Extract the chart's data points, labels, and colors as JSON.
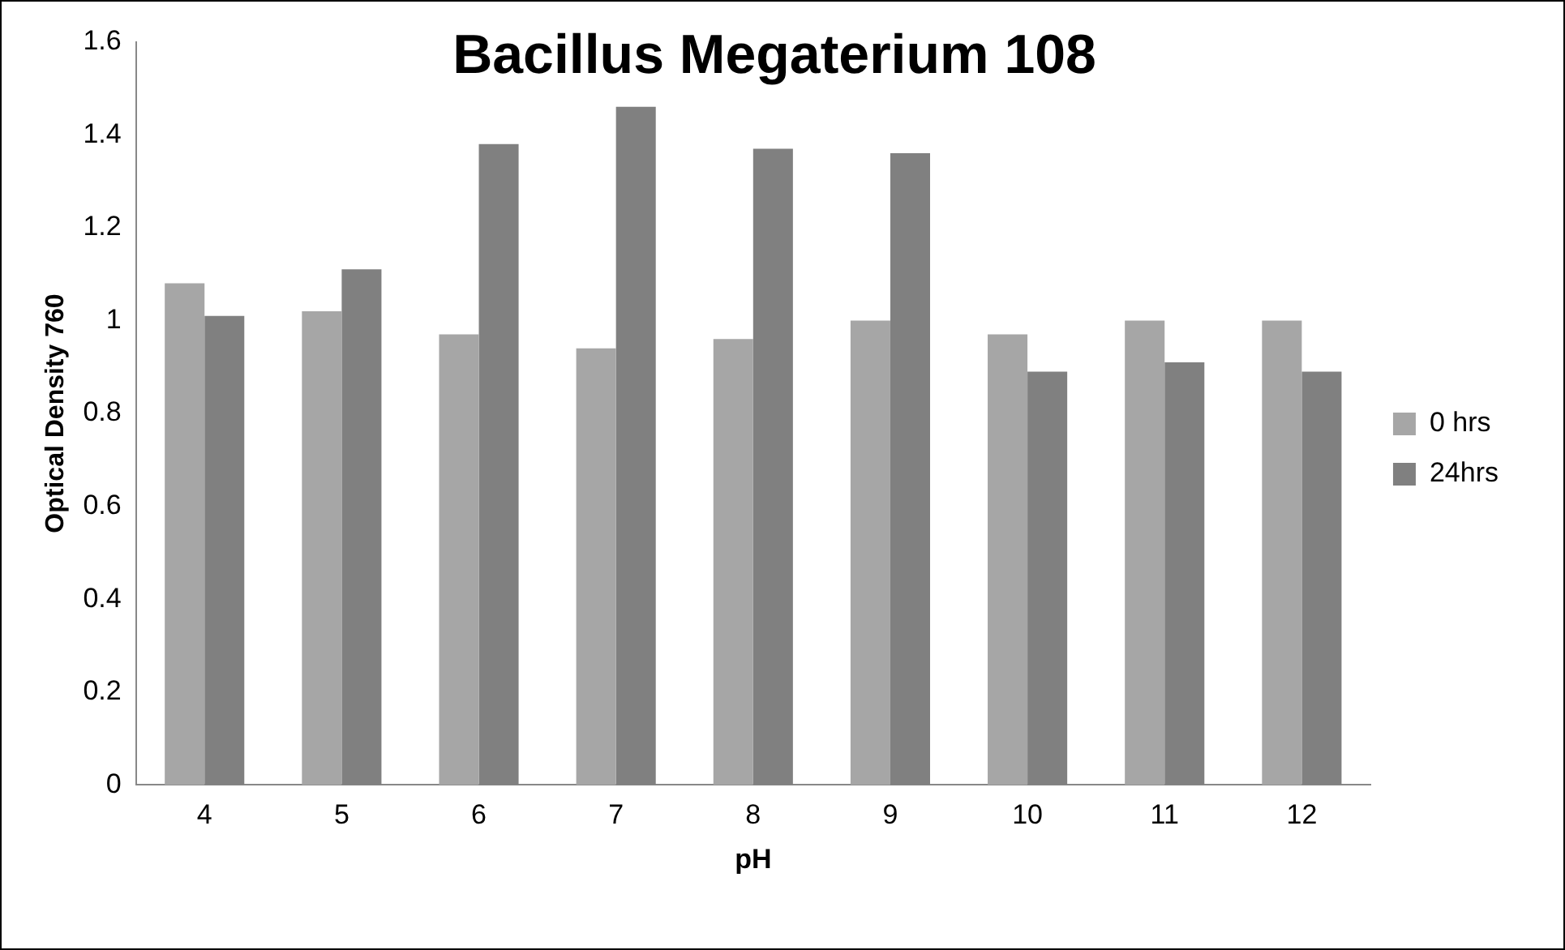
{
  "chart_data": {
    "type": "bar",
    "title": "Bacillus Megaterium 108",
    "xlabel": "pH",
    "ylabel": "Optical Density 760",
    "categories": [
      "4",
      "5",
      "6",
      "7",
      "8",
      "9",
      "10",
      "11",
      "12"
    ],
    "series": [
      {
        "name": "0 hrs",
        "color": "#a6a6a6",
        "values": [
          1.08,
          1.02,
          0.97,
          0.94,
          0.96,
          1.0,
          0.97,
          1.0,
          1.0
        ]
      },
      {
        "name": "24hrs",
        "color": "#808080",
        "values": [
          1.01,
          1.11,
          1.38,
          1.46,
          1.37,
          1.36,
          0.89,
          0.91,
          0.89
        ]
      }
    ],
    "ylim": [
      0,
      1.6
    ],
    "yticks": [
      0,
      0.2,
      0.4,
      0.6,
      0.8,
      1,
      1.2,
      1.4,
      1.6
    ],
    "grid": false,
    "legend": "right"
  }
}
